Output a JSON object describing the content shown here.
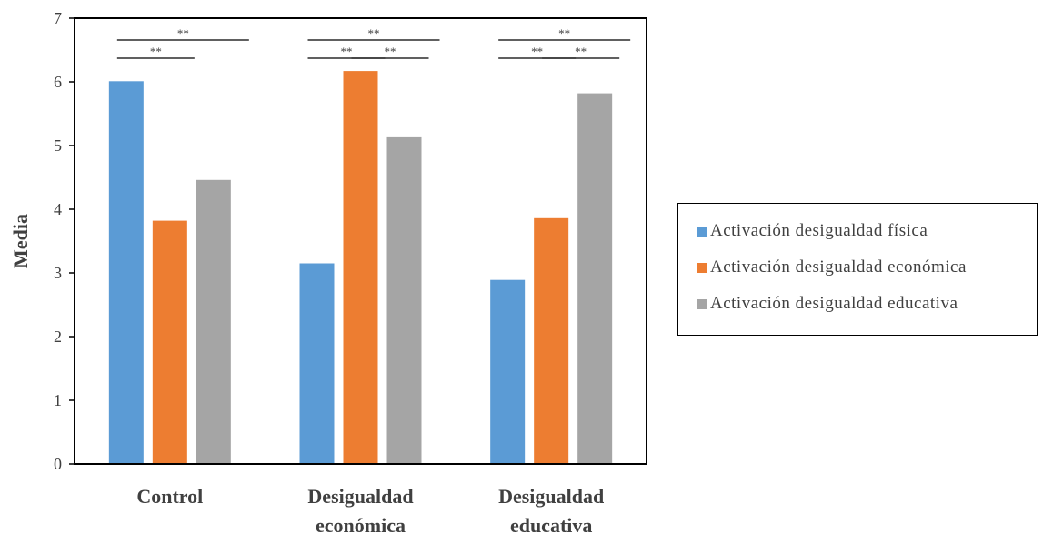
{
  "chart_data": {
    "type": "bar",
    "ylabel": "Media",
    "ylim": [
      0,
      7
    ],
    "yticks": [
      "0",
      "1",
      "2",
      "3",
      "4",
      "5",
      "6",
      "7"
    ],
    "categories": [
      [
        "Control"
      ],
      [
        "Desigualdad",
        "económica"
      ],
      [
        "Desigualdad",
        "educativa"
      ]
    ],
    "series": [
      {
        "name": "Activación desigualdad física",
        "color": "#5b9bd5",
        "values": [
          6.01,
          3.15,
          2.89
        ]
      },
      {
        "name": "Activación desigualdad económica",
        "color": "#ed7d31",
        "values": [
          3.82,
          6.17,
          3.86
        ]
      },
      {
        "name": "Activación desigualdad educativa",
        "color": "#a5a5a5",
        "values": [
          4.46,
          5.13,
          5.82
        ]
      }
    ],
    "significance": [
      {
        "group": 0,
        "pairs": [
          [
            0,
            2
          ],
          [
            0,
            1
          ]
        ],
        "label": "**"
      },
      {
        "group": 1,
        "pairs": [
          [
            0,
            2
          ],
          [
            0,
            1
          ],
          [
            1,
            2
          ]
        ],
        "label": "**"
      },
      {
        "group": 2,
        "pairs": [
          [
            0,
            2
          ],
          [
            0,
            1
          ],
          [
            1,
            2
          ]
        ],
        "label": "**"
      }
    ],
    "legend_position": "right",
    "grid": false
  }
}
